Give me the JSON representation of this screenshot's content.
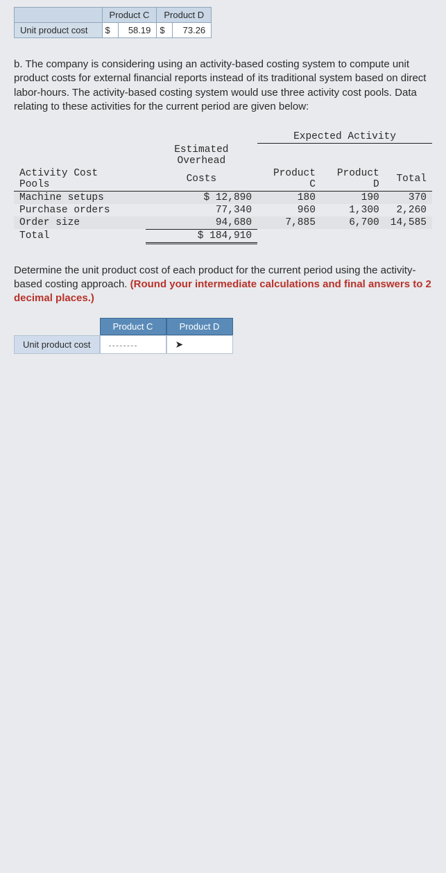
{
  "unit_cost_table": {
    "headers_blank": "",
    "header_c": "Product C",
    "header_d": "Product D",
    "row_label": "Unit product cost",
    "currency": "$",
    "val_c": "58.19",
    "val_d": "73.26"
  },
  "para_b": "b. The company is considering using an activity-based costing system to compute unit product costs for external financial reports instead of its traditional system based on direct labor-hours. The activity-based costing system would use three activity cost pools. Data relating to these activities for the current period are given below:",
  "cost_pools": {
    "col_pool": "Activity Cost Pools",
    "col_overhead_l1": "Estimated Overhead",
    "col_overhead_l2": "Costs",
    "col_expected": "Expected Activity",
    "col_prod_c": "Product C",
    "col_prod_d": "Product D",
    "col_total": "Total",
    "rows": [
      {
        "label": "Machine setups",
        "cost": "$ 12,890",
        "c": "180",
        "d": "190",
        "t": "370"
      },
      {
        "label": "Purchase orders",
        "cost": "77,340",
        "c": "960",
        "d": "1,300",
        "t": "2,260"
      },
      {
        "label": "Order size",
        "cost": "94,680",
        "c": "7,885",
        "d": "6,700",
        "t": "14,585"
      }
    ],
    "total_label": "Total",
    "total_cost": "$ 184,910"
  },
  "instruction_main": "Determine the unit product cost of each product for the current period using the activity-based costing approach. ",
  "instruction_red": "(Round your intermediate calculations and final answers to 2 decimal places.)",
  "answer_table": {
    "h_c": "Product C",
    "h_d": "Product D",
    "row_label": "Unit product cost"
  }
}
